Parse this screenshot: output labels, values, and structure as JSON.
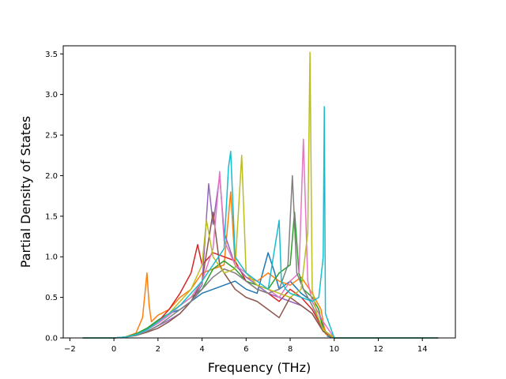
{
  "chart_data": {
    "type": "line",
    "title": "",
    "xlabel": "Frequency (THz)",
    "ylabel": "Partial Density of States",
    "xlim": [
      -2.3,
      15.5
    ],
    "ylim": [
      0.0,
      3.6
    ],
    "x_ticks": [
      -2,
      0,
      2,
      4,
      6,
      8,
      10,
      12,
      14
    ],
    "x_tick_labels": [
      "−2",
      "0",
      "2",
      "4",
      "6",
      "8",
      "10",
      "12",
      "14"
    ],
    "y_ticks": [
      0.0,
      0.5,
      1.0,
      1.5,
      2.0,
      2.5,
      3.0,
      3.5
    ],
    "y_tick_labels": [
      "0.0",
      "0.5",
      "1.0",
      "1.5",
      "2.0",
      "2.5",
      "3.0",
      "3.5"
    ],
    "grid": false,
    "legend": "none",
    "colors": [
      "#1f77b4",
      "#ff7f0e",
      "#2ca02c",
      "#d62728",
      "#9467bd",
      "#8c564b",
      "#e377c2",
      "#7f7f7f",
      "#bcbd22",
      "#17becf"
    ],
    "series": [
      {
        "color": "#1f77b4",
        "x": [
          -1.4,
          0,
          0.5,
          1.0,
          1.5,
          2.0,
          2.5,
          3.0,
          3.5,
          4.0,
          4.5,
          5.0,
          5.5,
          6.0,
          6.5,
          7.0,
          7.3,
          7.5,
          8.0,
          8.5,
          9.0,
          9.3,
          9.5,
          9.7,
          10,
          14.7
        ],
        "y": [
          0,
          0,
          0.01,
          0.05,
          0.12,
          0.2,
          0.3,
          0.35,
          0.45,
          0.55,
          0.6,
          0.65,
          0.7,
          0.6,
          0.55,
          1.05,
          0.8,
          0.6,
          0.7,
          0.55,
          0.45,
          0.3,
          0.15,
          0.02,
          0,
          0
        ]
      },
      {
        "color": "#ff7f0e",
        "x": [
          -1.4,
          0,
          0.5,
          1.0,
          1.3,
          1.5,
          1.6,
          1.7,
          2.0,
          2.5,
          3.0,
          3.5,
          4.0,
          4.5,
          5.0,
          5.3,
          5.5,
          6.0,
          6.5,
          7.0,
          7.5,
          8.0,
          8.5,
          9.0,
          9.4,
          9.6,
          10,
          14.7
        ],
        "y": [
          0,
          0,
          0.01,
          0.06,
          0.25,
          0.8,
          0.4,
          0.2,
          0.28,
          0.35,
          0.5,
          0.6,
          0.8,
          0.85,
          0.9,
          1.8,
          0.9,
          0.75,
          0.7,
          0.8,
          0.7,
          0.65,
          0.75,
          0.55,
          0.35,
          0.05,
          0,
          0
        ]
      },
      {
        "color": "#2ca02c",
        "x": [
          -1.4,
          0,
          0.5,
          1.0,
          1.5,
          2.0,
          2.5,
          3.0,
          3.5,
          4.0,
          4.5,
          5.0,
          5.5,
          6.0,
          6.5,
          7.0,
          7.5,
          8.0,
          8.2,
          8.4,
          8.6,
          9.0,
          9.3,
          9.5,
          10,
          14.7
        ],
        "y": [
          0,
          0,
          0.01,
          0.05,
          0.12,
          0.22,
          0.3,
          0.4,
          0.5,
          0.6,
          0.85,
          0.95,
          0.85,
          0.7,
          0.65,
          0.6,
          0.8,
          0.9,
          1.55,
          0.8,
          0.6,
          0.5,
          0.35,
          0.1,
          0,
          0
        ]
      },
      {
        "color": "#d62728",
        "x": [
          -1.4,
          0,
          0.5,
          1.0,
          1.5,
          2.0,
          2.5,
          3.0,
          3.5,
          3.8,
          4.0,
          4.5,
          5.0,
          5.5,
          6.0,
          6.5,
          7.0,
          7.5,
          8.0,
          8.5,
          9.0,
          9.5,
          10,
          14.7
        ],
        "y": [
          0,
          0,
          0.01,
          0.04,
          0.1,
          0.2,
          0.35,
          0.55,
          0.8,
          1.15,
          0.9,
          1.05,
          1.0,
          0.95,
          0.7,
          0.6,
          0.55,
          0.45,
          0.6,
          0.5,
          0.35,
          0.1,
          0,
          0
        ]
      },
      {
        "color": "#9467bd",
        "x": [
          -1.4,
          0,
          0.5,
          1.0,
          1.5,
          2.0,
          2.5,
          3.0,
          3.5,
          4.0,
          4.3,
          4.5,
          4.8,
          5.0,
          5.5,
          6.0,
          6.5,
          7.0,
          7.5,
          8.0,
          8.5,
          9.0,
          9.5,
          10,
          14.7
        ],
        "y": [
          0,
          0,
          0.01,
          0.03,
          0.08,
          0.15,
          0.22,
          0.3,
          0.45,
          0.65,
          1.9,
          1.4,
          2.0,
          1.3,
          0.9,
          0.75,
          0.65,
          0.55,
          0.5,
          0.45,
          0.4,
          0.3,
          0.08,
          0,
          0
        ]
      },
      {
        "color": "#8c564b",
        "x": [
          -1.4,
          0,
          0.5,
          1.0,
          1.5,
          2.0,
          2.5,
          3.0,
          3.5,
          4.0,
          4.5,
          4.8,
          5.0,
          5.5,
          6.0,
          6.5,
          7.0,
          7.5,
          8.0,
          8.5,
          9.0,
          9.5,
          10,
          14.7
        ],
        "y": [
          0,
          0,
          0.01,
          0.03,
          0.07,
          0.12,
          0.2,
          0.3,
          0.45,
          0.7,
          1.55,
          0.9,
          0.8,
          0.6,
          0.5,
          0.45,
          0.35,
          0.25,
          0.5,
          0.4,
          0.3,
          0.08,
          0,
          0
        ]
      },
      {
        "color": "#e377c2",
        "x": [
          -1.4,
          0,
          0.5,
          1.0,
          1.5,
          2.0,
          2.5,
          3.0,
          3.5,
          4.0,
          4.5,
          4.8,
          5.0,
          5.5,
          6.0,
          6.5,
          7.0,
          7.5,
          8.0,
          8.4,
          8.6,
          8.8,
          9.0,
          9.5,
          10,
          14.7
        ],
        "y": [
          0,
          0,
          0.01,
          0.04,
          0.1,
          0.18,
          0.28,
          0.4,
          0.5,
          0.7,
          1.1,
          2.05,
          1.2,
          0.9,
          0.8,
          0.7,
          0.6,
          0.5,
          0.7,
          0.8,
          2.45,
          0.7,
          0.45,
          0.2,
          0,
          0
        ]
      },
      {
        "color": "#7f7f7f",
        "x": [
          -1.4,
          0,
          0.5,
          1.0,
          1.5,
          2.0,
          2.5,
          3.0,
          3.5,
          4.0,
          4.5,
          5.0,
          5.5,
          6.0,
          6.5,
          7.0,
          7.5,
          7.9,
          8.1,
          8.3,
          8.6,
          9.0,
          9.5,
          10,
          14.7
        ],
        "y": [
          0,
          0,
          0.01,
          0.03,
          0.08,
          0.15,
          0.25,
          0.35,
          0.45,
          0.6,
          0.75,
          0.85,
          0.8,
          0.7,
          0.6,
          0.55,
          0.6,
          0.9,
          2.0,
          0.8,
          0.6,
          0.4,
          0.1,
          0,
          0
        ]
      },
      {
        "color": "#bcbd22",
        "x": [
          -1.4,
          0,
          0.5,
          1.0,
          1.5,
          2.0,
          2.5,
          3.0,
          3.5,
          4.0,
          4.2,
          4.5,
          5.0,
          5.5,
          5.8,
          6.0,
          6.5,
          7.0,
          7.5,
          8.0,
          8.5,
          8.8,
          8.9,
          9.0,
          9.2,
          9.5,
          10,
          14.7
        ],
        "y": [
          0,
          0,
          0.01,
          0.04,
          0.1,
          0.2,
          0.3,
          0.45,
          0.6,
          0.9,
          1.45,
          1.0,
          0.8,
          0.85,
          2.25,
          0.8,
          0.65,
          0.6,
          0.55,
          0.5,
          0.6,
          1.3,
          3.52,
          0.6,
          0.3,
          0.1,
          0,
          0
        ]
      },
      {
        "color": "#17becf",
        "x": [
          -1.4,
          0,
          0.5,
          1.0,
          1.5,
          2.0,
          2.5,
          3.0,
          3.5,
          4.0,
          4.5,
          5.0,
          5.2,
          5.3,
          5.5,
          6.0,
          6.5,
          7.0,
          7.5,
          7.6,
          7.8,
          8.0,
          8.5,
          9.0,
          9.3,
          9.5,
          9.55,
          9.6,
          10,
          14.7
        ],
        "y": [
          0,
          0,
          0.01,
          0.04,
          0.1,
          0.2,
          0.3,
          0.4,
          0.55,
          0.7,
          0.9,
          1.1,
          2.1,
          2.3,
          1.0,
          0.8,
          0.7,
          0.6,
          1.45,
          0.7,
          0.6,
          0.55,
          0.5,
          0.45,
          0.5,
          1.0,
          2.85,
          0.3,
          0,
          0
        ]
      }
    ]
  }
}
